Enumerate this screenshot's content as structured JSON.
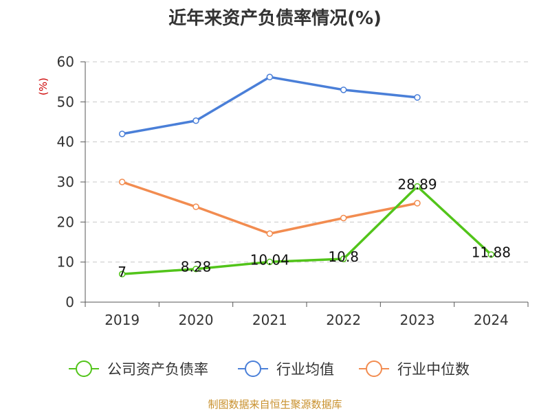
{
  "chart_data": {
    "type": "line",
    "title": "近年来资产负债率情况(%)",
    "ylabel": "(%)",
    "xlabel": "",
    "categories": [
      "2019",
      "2020",
      "2021",
      "2022",
      "2023",
      "2024"
    ],
    "ylim": [
      0,
      60
    ],
    "yticks": [
      0,
      10,
      20,
      30,
      40,
      50,
      60
    ],
    "grid": true,
    "legend_position": "bottom",
    "series": [
      {
        "name": "公司资产负债率",
        "color": "#52c41a",
        "values": [
          7,
          8.28,
          10.04,
          10.8,
          28.89,
          11.88
        ],
        "labels": [
          "7",
          "8.28",
          "10.04",
          "10.8",
          "28.89",
          "11.88"
        ]
      },
      {
        "name": "行业均值",
        "color": "#4a7fd8",
        "values": [
          42,
          45.3,
          56.2,
          53,
          51.1,
          null
        ]
      },
      {
        "name": "行业中位数",
        "color": "#f28c50",
        "values": [
          30,
          23.8,
          17.1,
          21,
          24.7,
          null
        ]
      }
    ]
  },
  "source": "制图数据来自恒生聚源数据库"
}
